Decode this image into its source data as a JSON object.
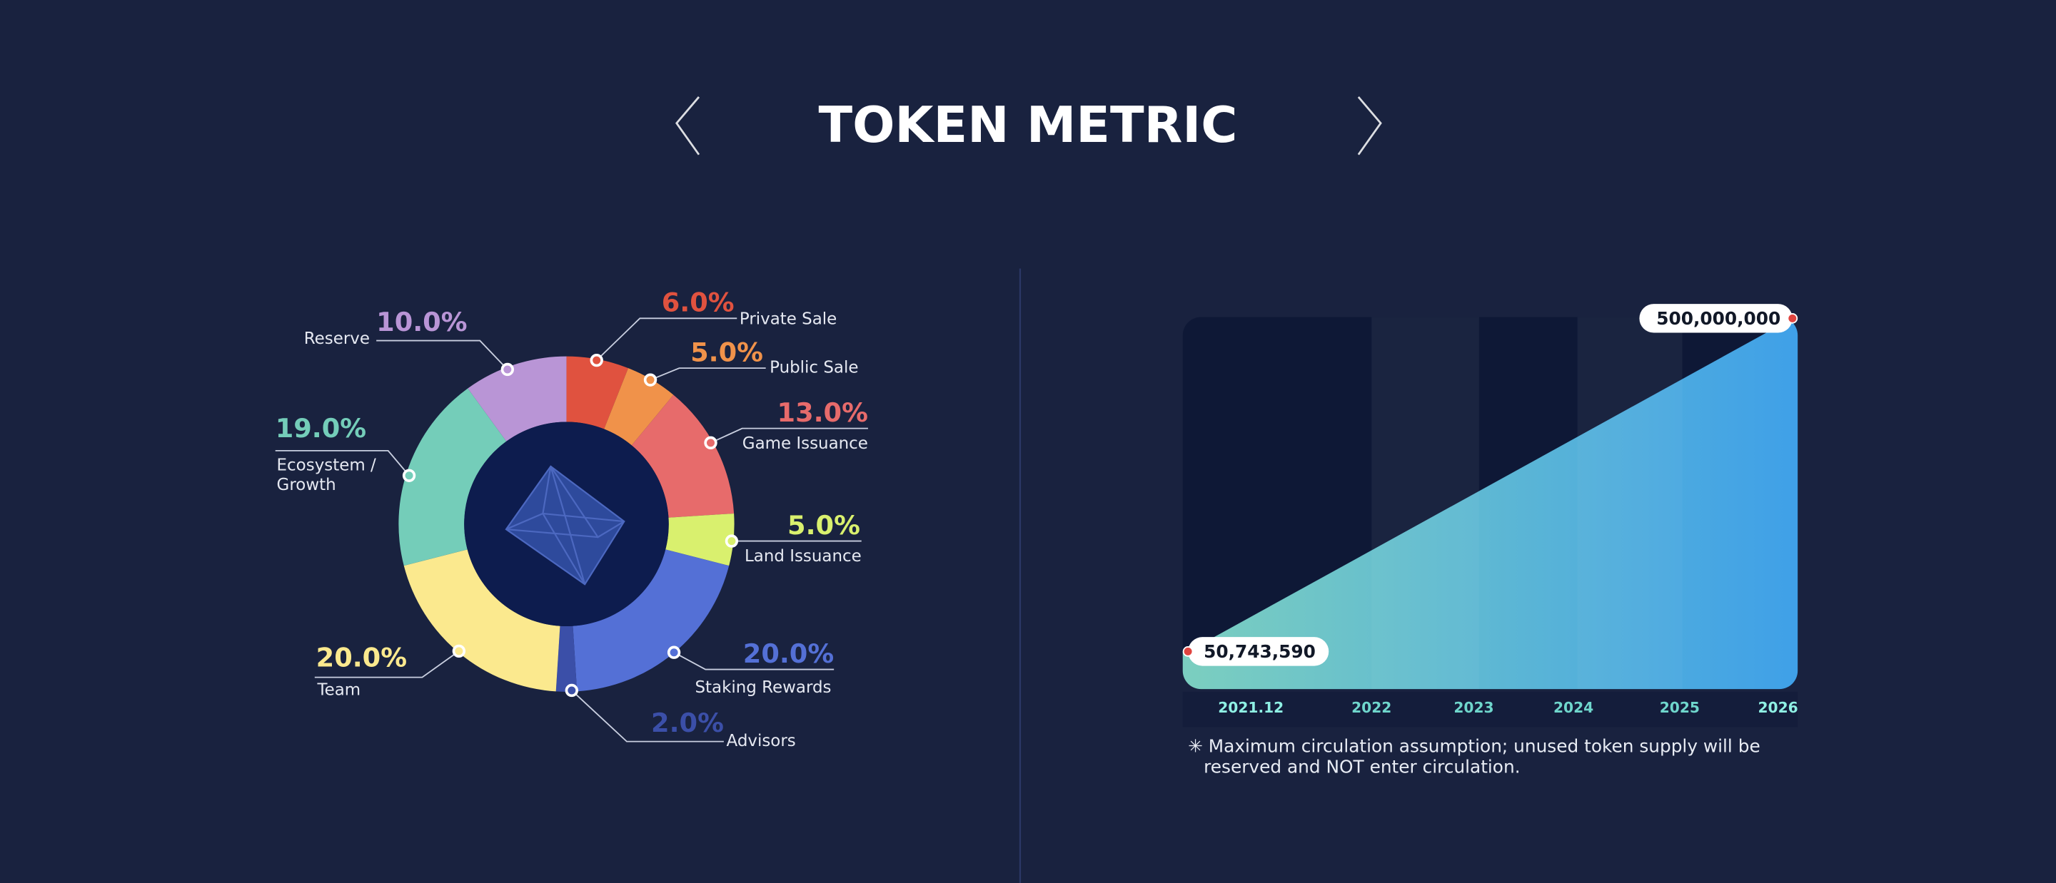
{
  "title": "TOKEN METRIC",
  "chart_data": [
    {
      "type": "pie",
      "categories": [
        "Private Sale",
        "Public Sale",
        "Game Issuance",
        "Land Issuance",
        "Staking Rewards",
        "Advisors",
        "Team",
        "Ecosystem / Growth",
        "Reserve"
      ],
      "values": [
        6,
        5,
        13,
        5,
        20,
        2,
        20,
        19,
        10
      ],
      "value_labels": [
        "6.0%",
        "5.0%",
        "13.0%",
        "5.0%",
        "20.0%",
        "2.0%",
        "20.0%",
        "19.0%",
        "10.0%"
      ],
      "colors": [
        "#e0523f",
        "#f0924a",
        "#e76b6b",
        "#d9f06e",
        "#5470d6",
        "#3b4fa8",
        "#fbe98e",
        "#74cdb9",
        "#b995d6"
      ]
    },
    {
      "type": "area",
      "x": [
        "2021.12",
        "2026"
      ],
      "values": [
        50743590,
        500000000
      ],
      "value_labels": [
        "50,743,590",
        "500,000,000"
      ],
      "xticks": [
        "2021.12",
        "2022",
        "2023",
        "2024",
        "2025",
        "2026"
      ],
      "ylim": [
        0,
        500000000
      ],
      "colors": [
        "#7ccfbf",
        "#3fa0e8"
      ],
      "annotation": "✳ Maximum circulation assumption; unused token supply will be reserved and NOT enter circulation."
    }
  ]
}
